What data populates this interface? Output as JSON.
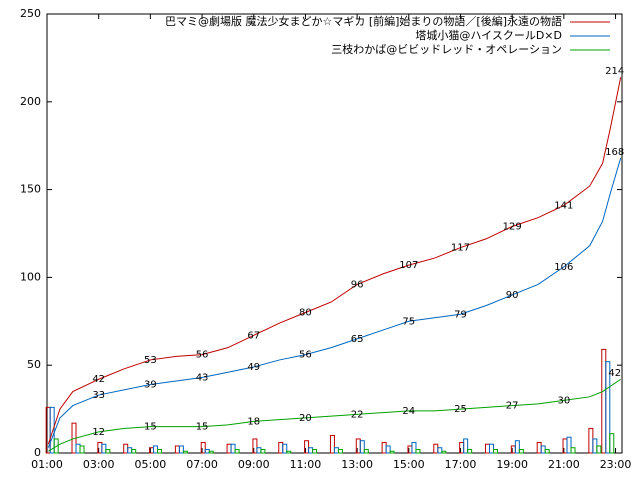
{
  "chart_data": {
    "type": "line",
    "x": [
      1.05,
      1.5,
      2,
      3,
      4,
      5,
      6,
      7,
      8,
      9,
      10,
      11,
      12,
      13,
      14,
      15,
      16,
      17,
      18,
      19,
      20,
      21,
      22,
      22.5,
      22.8,
      23.2
    ],
    "bar_x": [
      1.2,
      2.2,
      3.2,
      4.2,
      5.2,
      6.2,
      7.2,
      8.2,
      9.2,
      10.2,
      11.2,
      12.2,
      13.2,
      14.2,
      15.2,
      16.2,
      17.2,
      18.2,
      19.2,
      20.2,
      21.2,
      22.2,
      22.7
    ],
    "series": [
      {
        "name": "巴マミ@劇場版 魔法少女まどか☆マギカ [前編]始まりの物語／[後編]永遠の物語",
        "color": "#c00000",
        "values": [
          5,
          25,
          35,
          42,
          48,
          53,
          55,
          56,
          60,
          67,
          74,
          80,
          86,
          96,
          102,
          107,
          111,
          117,
          122,
          129,
          134,
          141,
          152,
          165,
          185,
          214
        ],
        "bar_values": [
          26,
          17,
          6,
          5,
          3,
          4,
          6,
          5,
          8,
          6,
          7,
          10,
          8,
          6,
          4,
          5,
          6,
          5,
          4,
          6,
          8,
          14,
          59
        ]
      },
      {
        "name": "塔城小猫@ハイスクールD×D",
        "color": "#0066c0",
        "values": [
          3,
          20,
          27,
          33,
          36,
          39,
          41,
          43,
          46,
          49,
          53,
          56,
          60,
          65,
          70,
          75,
          77,
          79,
          84,
          90,
          96,
          106,
          118,
          132,
          148,
          168
        ],
        "bar_values": [
          26,
          5,
          5,
          3,
          4,
          4,
          2,
          5,
          3,
          5,
          3,
          3,
          7,
          4,
          6,
          3,
          8,
          5,
          7,
          4,
          9,
          8,
          52
        ]
      },
      {
        "name": "三枝わかば@ビビッドレッド・オペレーション",
        "color": "#00a000",
        "values": [
          1,
          5,
          8,
          12,
          14,
          15,
          15,
          15,
          16,
          18,
          19,
          20,
          21,
          22,
          23,
          24,
          24,
          25,
          26,
          27,
          28,
          30,
          32,
          35,
          38,
          42
        ],
        "bar_values": [
          8,
          4,
          2,
          2,
          2,
          1,
          1,
          2,
          2,
          1,
          2,
          2,
          2,
          1,
          2,
          1,
          2,
          2,
          2,
          2,
          3,
          4,
          11
        ]
      }
    ],
    "xlim": [
      1,
      23.25
    ],
    "xticks": [
      {
        "value": 1,
        "label": "01:00"
      },
      {
        "value": 3,
        "label": "03:00"
      },
      {
        "value": 5,
        "label": "05:00"
      },
      {
        "value": 7,
        "label": "07:00"
      },
      {
        "value": 9,
        "label": "09:00"
      },
      {
        "value": 11,
        "label": "11:00"
      },
      {
        "value": 13,
        "label": "13:00"
      },
      {
        "value": 15,
        "label": "15:00"
      },
      {
        "value": 17,
        "label": "17:00"
      },
      {
        "value": 19,
        "label": "19:00"
      },
      {
        "value": 21,
        "label": "21:00"
      },
      {
        "value": 23,
        "label": "23:00"
      }
    ],
    "ylim": [
      0,
      250
    ],
    "yticks": [
      0,
      50,
      100,
      150,
      200,
      250
    ],
    "legend": "top-right"
  }
}
